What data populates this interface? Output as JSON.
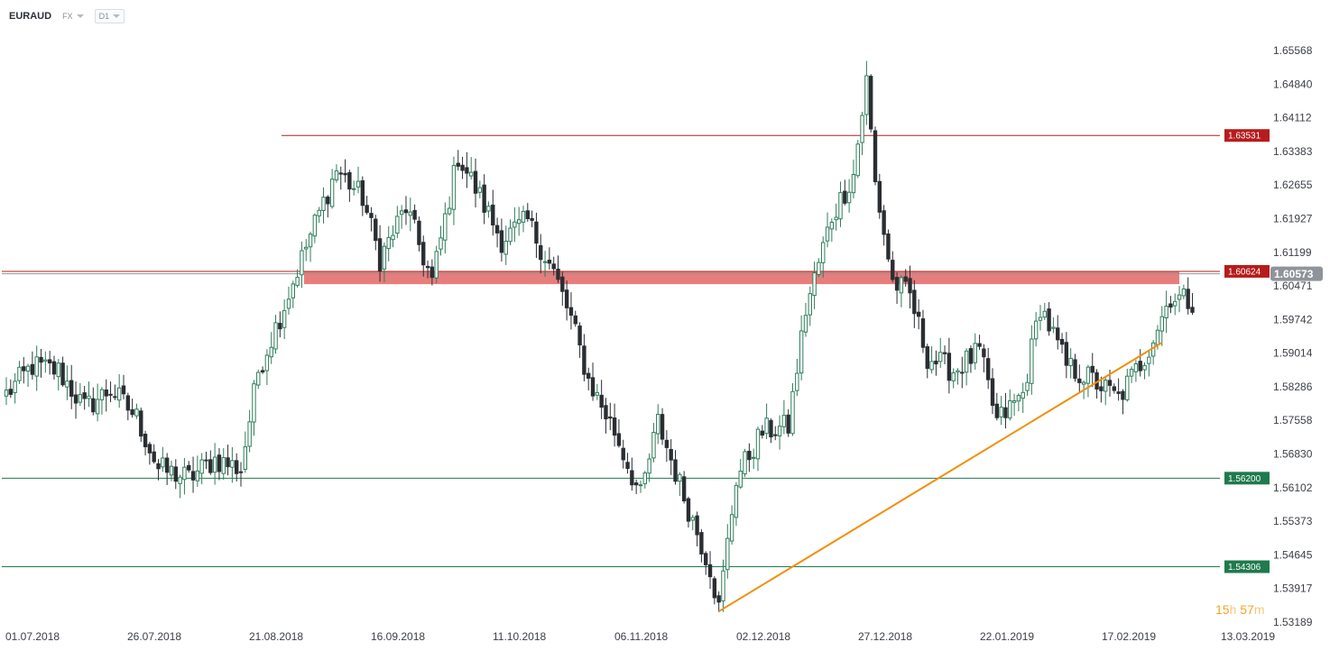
{
  "toolbar": {
    "symbol": "EURAUD",
    "market": "FX",
    "timeframe": "D1"
  },
  "countdown": {
    "hours": "15",
    "hours_unit": "h",
    "minutes": "57",
    "minutes_unit": "m"
  },
  "colors": {
    "bull": "#2e7d5b",
    "bear": "#2a2e33",
    "resistance": "#b71c1c",
    "support": "#1f7a4d",
    "zone": "#e05252",
    "trend": "#f0900a",
    "current": "#8e9499"
  },
  "chart_data": {
    "type": "candlestick",
    "y_ticks": [
      "1.65568",
      "1.64840",
      "1.64112",
      "1.63383",
      "1.62655",
      "1.61927",
      "1.61199",
      "1.60471",
      "1.59742",
      "1.59014",
      "1.58286",
      "1.57558",
      "1.56830",
      "1.56102",
      "1.55373",
      "1.54645",
      "1.53917",
      "1.53189"
    ],
    "x_ticks": [
      "01.07.2018",
      "26.07.2018",
      "21.08.2018",
      "16.09.2018",
      "11.10.2018",
      "06.11.2018",
      "02.12.2018",
      "27.12.2018",
      "22.01.2019",
      "17.02.2019",
      "13.03.2019"
    ],
    "ylim": [
      1.5312,
      1.6585
    ],
    "horizontal_levels": [
      {
        "price": 1.63531,
        "label": "1.63531",
        "kind": "resistance"
      },
      {
        "price": 1.60624,
        "label": "1.60624",
        "kind": "resistance"
      },
      {
        "price": 1.562,
        "label": "1.56200",
        "kind": "support"
      },
      {
        "price": 1.54306,
        "label": "1.54306",
        "kind": "support"
      }
    ],
    "current_price": {
      "price": 1.60573,
      "label": "1.60573"
    },
    "zone": {
      "from": 1.6035,
      "to": 1.6062
    },
    "trendline": {
      "from_index": 164,
      "from_price": 1.5335,
      "to_index": 266,
      "to_price": 1.591
    },
    "key_points": [
      [
        0,
        1.58
      ],
      [
        6,
        1.586
      ],
      [
        12,
        1.585
      ],
      [
        18,
        1.577
      ],
      [
        24,
        1.581
      ],
      [
        30,
        1.575
      ],
      [
        35,
        1.564
      ],
      [
        42,
        1.562
      ],
      [
        48,
        1.566
      ],
      [
        54,
        1.564
      ],
      [
        58,
        1.585
      ],
      [
        64,
        1.599
      ],
      [
        70,
        1.614
      ],
      [
        76,
        1.628
      ],
      [
        82,
        1.622
      ],
      [
        86,
        1.609
      ],
      [
        92,
        1.62
      ],
      [
        98,
        1.604
      ],
      [
        104,
        1.631
      ],
      [
        108,
        1.624
      ],
      [
        114,
        1.613
      ],
      [
        120,
        1.617
      ],
      [
        126,
        1.606
      ],
      [
        130,
        1.596
      ],
      [
        134,
        1.583
      ],
      [
        140,
        1.572
      ],
      [
        146,
        1.558
      ],
      [
        150,
        1.574
      ],
      [
        156,
        1.558
      ],
      [
        162,
        1.543
      ],
      [
        164,
        1.534
      ],
      [
        168,
        1.562
      ],
      [
        174,
        1.572
      ],
      [
        180,
        1.573
      ],
      [
        184,
        1.598
      ],
      [
        190,
        1.618
      ],
      [
        195,
        1.627
      ],
      [
        198,
        1.647
      ],
      [
        200,
        1.625
      ],
      [
        204,
        1.604
      ],
      [
        208,
        1.601
      ],
      [
        212,
        1.588
      ],
      [
        218,
        1.585
      ],
      [
        224,
        1.589
      ],
      [
        228,
        1.574
      ],
      [
        234,
        1.58
      ],
      [
        238,
        1.599
      ],
      [
        244,
        1.586
      ],
      [
        250,
        1.583
      ],
      [
        256,
        1.579
      ],
      [
        262,
        1.588
      ],
      [
        268,
        1.601
      ],
      [
        272,
        1.6
      ]
    ]
  }
}
